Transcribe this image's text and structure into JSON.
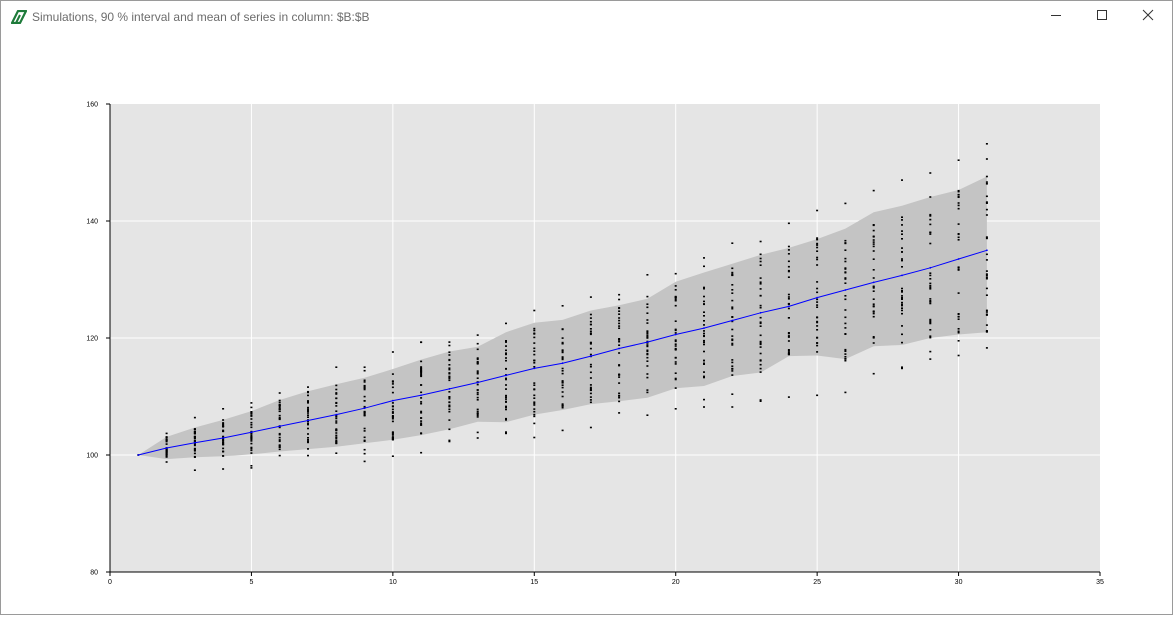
{
  "window": {
    "title": "Simulations, 90 % interval and mean of series in column: $B:$B",
    "icon": "app-logo-icon",
    "buttons": {
      "minimize": "minimize-icon",
      "maximize": "maximize-icon",
      "close": "close-icon"
    }
  },
  "colors": {
    "plot_background": "#e5e5e5",
    "grid": "#ffffff",
    "band": "#c4c4c4",
    "mean_line": "#0000ff",
    "points": "#000000",
    "brand": "#1e7b3a"
  },
  "chart_data": {
    "type": "line",
    "title": "",
    "xlabel": "",
    "ylabel": "",
    "xlim": [
      0,
      35
    ],
    "ylim": [
      80,
      160
    ],
    "x_ticks": [
      0,
      5,
      10,
      15,
      20,
      25,
      30,
      35
    ],
    "y_ticks": [
      80,
      100,
      120,
      140,
      160
    ],
    "grid": true,
    "legend": "none",
    "x": [
      1,
      2,
      3,
      4,
      5,
      6,
      7,
      8,
      9,
      10,
      11,
      12,
      13,
      14,
      15,
      16,
      17,
      18,
      19,
      20,
      21,
      22,
      23,
      24,
      25,
      26,
      27,
      28,
      29,
      30,
      31
    ],
    "series": [
      {
        "kind": "line",
        "values": [
          100.0,
          101.2,
          102.1,
          102.9,
          103.9,
          104.9,
          105.9,
          106.9,
          108.0,
          109.3,
          110.2,
          111.3,
          112.4,
          113.6,
          114.8,
          115.7,
          116.9,
          118.2,
          119.3,
          120.6,
          121.7,
          123.0,
          124.3,
          125.4,
          126.9,
          128.2,
          129.5,
          130.7,
          132.0,
          133.5,
          135.0
        ]
      },
      {
        "kind": "band",
        "lower": [
          100.0,
          99.3,
          99.6,
          99.8,
          100.1,
          100.6,
          101.0,
          101.4,
          102.0,
          102.6,
          103.4,
          104.4,
          105.7,
          105.6,
          106.9,
          107.7,
          108.7,
          109.2,
          109.8,
          111.4,
          111.8,
          113.5,
          114.1,
          116.9,
          117.0,
          116.4,
          118.6,
          118.8,
          120.0,
          120.6,
          121.0
        ],
        "upper": [
          100.0,
          103.1,
          104.7,
          106.0,
          107.5,
          109.4,
          110.9,
          112.1,
          113.2,
          114.7,
          116.3,
          117.7,
          118.5,
          121.0,
          122.6,
          123.1,
          124.7,
          125.6,
          126.7,
          129.6,
          131.2,
          132.7,
          134.2,
          135.4,
          136.9,
          138.7,
          141.5,
          142.6,
          144.1,
          145.3,
          147.6
        ]
      },
      {
        "kind": "points",
        "min": [
          100.0,
          98.8,
          97.4,
          97.6,
          97.8,
          99.9,
          99.9,
          100.3,
          98.9,
          99.8,
          100.4,
          102.3,
          102.9,
          103.7,
          103.0,
          104.2,
          104.7,
          107.2,
          106.8,
          107.9,
          108.2,
          108.2,
          109.2,
          109.9,
          110.2,
          110.7,
          113.9,
          114.8,
          116.4,
          117.0,
          118.3
        ],
        "max": [
          100.0,
          103.7,
          106.4,
          107.9,
          108.9,
          110.6,
          111.6,
          115.0,
          115.0,
          117.6,
          119.3,
          119.3,
          120.5,
          122.5,
          124.7,
          125.5,
          127.0,
          127.4,
          130.8,
          131.0,
          133.7,
          136.2,
          136.5,
          139.6,
          141.8,
          143.0,
          145.2,
          147.0,
          148.2,
          150.4,
          153.2
        ],
        "points_per_step": 30
      }
    ]
  }
}
